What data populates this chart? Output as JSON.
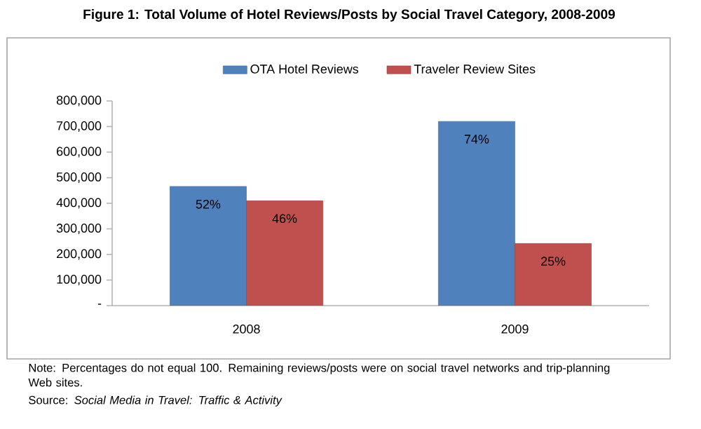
{
  "chart_data": {
    "type": "bar",
    "title": "Figure 1: Total Volume of Hotel Reviews/Posts by Social Travel Category, 2008-2009",
    "categories": [
      "2008",
      "2009"
    ],
    "series": [
      {
        "name": "OTA Hotel Reviews",
        "color": "#4f81bd",
        "values": [
          466000,
          720000
        ]
      },
      {
        "name": "Traveler Review Sites",
        "color": "#c0504d",
        "values": [
          410000,
          243000
        ]
      }
    ],
    "ylim": [
      0,
      800000
    ],
    "yticks": [
      {
        "value": 0,
        "label": "-"
      },
      {
        "value": 100000,
        "label": "100,000"
      },
      {
        "value": 200000,
        "label": "200,000"
      },
      {
        "value": 300000,
        "label": "300,000"
      },
      {
        "value": 400000,
        "label": "400,000"
      },
      {
        "value": 500000,
        "label": "500,000"
      },
      {
        "value": 600000,
        "label": "600,000"
      },
      {
        "value": 700000,
        "label": "700,000"
      },
      {
        "value": 800000,
        "label": "800,000"
      }
    ],
    "legend": "top",
    "annotations": [
      {
        "text": "52%",
        "x": "2008",
        "y": 466000
      },
      {
        "text": "46%",
        "x": "2008",
        "y": 410000
      },
      {
        "text": "74%",
        "x": "2009",
        "y": 720000
      },
      {
        "text": "25%",
        "x": "2009",
        "y": 243000
      },
      "Note: Percentages do not equal 100. Remaining reviews/posts were on social travel networks and trip-planning Web sites.",
      "Source: *Social Media in Travel: Traffic & Activity*"
    ]
  }
}
